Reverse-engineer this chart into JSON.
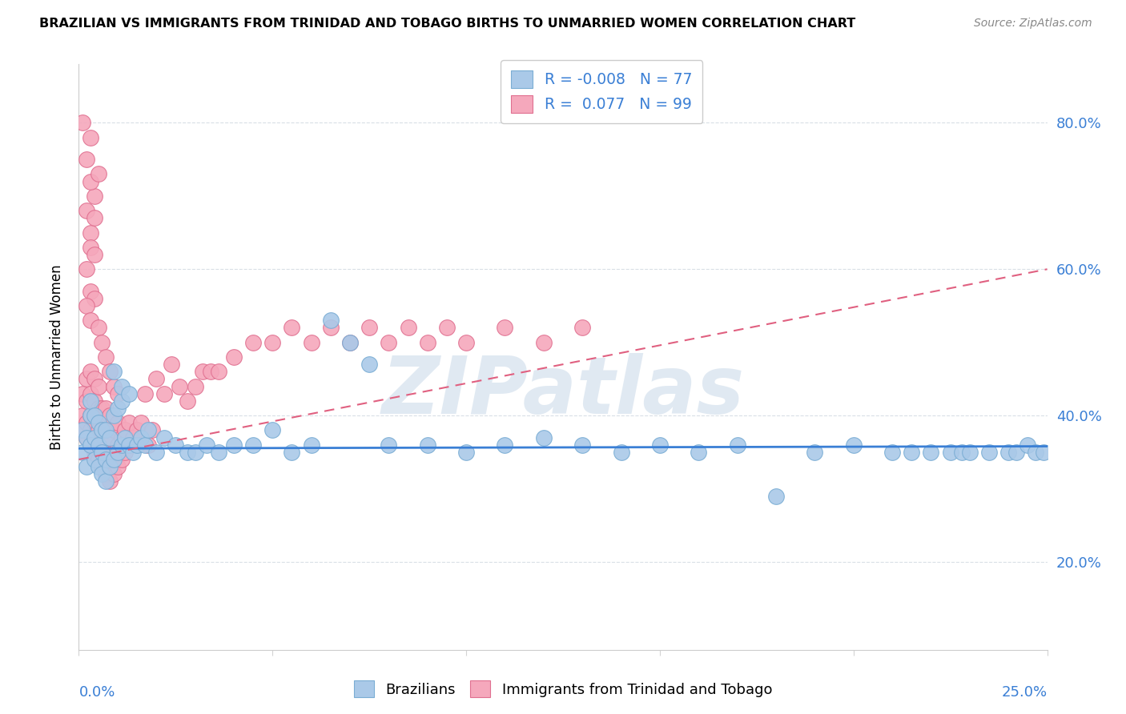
{
  "title": "BRAZILIAN VS IMMIGRANTS FROM TRINIDAD AND TOBAGO BIRTHS TO UNMARRIED WOMEN CORRELATION CHART",
  "source": "Source: ZipAtlas.com",
  "ylabel": "Births to Unmarried Women",
  "yticks": [
    0.2,
    0.4,
    0.6,
    0.8
  ],
  "ytick_labels": [
    "20.0%",
    "40.0%",
    "60.0%",
    "80.0%"
  ],
  "xlim": [
    0.0,
    0.25
  ],
  "ylim": [
    0.08,
    0.88
  ],
  "blue_R": "-0.008",
  "blue_N": "77",
  "pink_R": "0.077",
  "pink_N": "99",
  "blue_color": "#aac9e8",
  "pink_color": "#f5a8bc",
  "blue_edge_color": "#7aadd4",
  "pink_edge_color": "#e07090",
  "blue_line_color": "#3a7fd5",
  "pink_line_color": "#e06080",
  "watermark": "ZIPatlas",
  "blue_line_y0": 0.355,
  "blue_line_y1": 0.358,
  "pink_line_y0": 0.34,
  "pink_line_y1": 0.6,
  "blue_scatter_x": [
    0.001,
    0.001,
    0.002,
    0.002,
    0.003,
    0.003,
    0.003,
    0.004,
    0.004,
    0.004,
    0.005,
    0.005,
    0.005,
    0.006,
    0.006,
    0.006,
    0.007,
    0.007,
    0.007,
    0.008,
    0.008,
    0.009,
    0.009,
    0.01,
    0.01,
    0.011,
    0.011,
    0.012,
    0.013,
    0.014,
    0.015,
    0.016,
    0.017,
    0.018,
    0.02,
    0.022,
    0.025,
    0.028,
    0.03,
    0.033,
    0.036,
    0.04,
    0.045,
    0.05,
    0.055,
    0.06,
    0.065,
    0.07,
    0.08,
    0.09,
    0.1,
    0.11,
    0.12,
    0.13,
    0.14,
    0.15,
    0.16,
    0.17,
    0.18,
    0.19,
    0.2,
    0.21,
    0.215,
    0.22,
    0.225,
    0.228,
    0.23,
    0.235,
    0.24,
    0.242,
    0.245,
    0.247,
    0.249,
    0.009,
    0.011,
    0.013,
    0.075
  ],
  "blue_scatter_y": [
    0.35,
    0.38,
    0.33,
    0.37,
    0.36,
    0.4,
    0.42,
    0.34,
    0.37,
    0.4,
    0.33,
    0.36,
    0.39,
    0.32,
    0.35,
    0.38,
    0.31,
    0.34,
    0.38,
    0.33,
    0.37,
    0.34,
    0.4,
    0.35,
    0.41,
    0.36,
    0.42,
    0.37,
    0.36,
    0.35,
    0.36,
    0.37,
    0.36,
    0.38,
    0.35,
    0.37,
    0.36,
    0.35,
    0.35,
    0.36,
    0.35,
    0.36,
    0.36,
    0.38,
    0.35,
    0.36,
    0.53,
    0.5,
    0.36,
    0.36,
    0.35,
    0.36,
    0.37,
    0.36,
    0.35,
    0.36,
    0.35,
    0.36,
    0.29,
    0.35,
    0.36,
    0.35,
    0.35,
    0.35,
    0.35,
    0.35,
    0.35,
    0.35,
    0.35,
    0.35,
    0.36,
    0.35,
    0.35,
    0.46,
    0.44,
    0.43,
    0.47
  ],
  "pink_scatter_x": [
    0.001,
    0.001,
    0.001,
    0.002,
    0.002,
    0.002,
    0.002,
    0.003,
    0.003,
    0.003,
    0.003,
    0.003,
    0.004,
    0.004,
    0.004,
    0.004,
    0.004,
    0.005,
    0.005,
    0.005,
    0.005,
    0.005,
    0.006,
    0.006,
    0.006,
    0.006,
    0.007,
    0.007,
    0.007,
    0.007,
    0.008,
    0.008,
    0.008,
    0.008,
    0.009,
    0.009,
    0.009,
    0.01,
    0.01,
    0.01,
    0.011,
    0.011,
    0.012,
    0.012,
    0.013,
    0.013,
    0.014,
    0.015,
    0.016,
    0.017,
    0.018,
    0.019,
    0.02,
    0.022,
    0.024,
    0.026,
    0.028,
    0.03,
    0.032,
    0.034,
    0.036,
    0.04,
    0.045,
    0.05,
    0.055,
    0.06,
    0.065,
    0.07,
    0.075,
    0.08,
    0.085,
    0.09,
    0.095,
    0.1,
    0.11,
    0.12,
    0.13,
    0.002,
    0.003,
    0.003,
    0.004,
    0.002,
    0.003,
    0.004,
    0.005,
    0.002,
    0.003,
    0.004,
    0.003,
    0.004,
    0.001,
    0.002,
    0.003,
    0.005,
    0.006,
    0.007,
    0.008,
    0.009,
    0.01
  ],
  "pink_scatter_y": [
    0.4,
    0.43,
    0.38,
    0.37,
    0.39,
    0.42,
    0.45,
    0.36,
    0.38,
    0.4,
    0.43,
    0.46,
    0.35,
    0.37,
    0.39,
    0.42,
    0.45,
    0.34,
    0.36,
    0.38,
    0.41,
    0.44,
    0.33,
    0.35,
    0.38,
    0.41,
    0.32,
    0.35,
    0.38,
    0.41,
    0.31,
    0.34,
    0.37,
    0.4,
    0.32,
    0.35,
    0.38,
    0.33,
    0.36,
    0.39,
    0.34,
    0.37,
    0.35,
    0.38,
    0.36,
    0.39,
    0.37,
    0.38,
    0.39,
    0.43,
    0.36,
    0.38,
    0.45,
    0.43,
    0.47,
    0.44,
    0.42,
    0.44,
    0.46,
    0.46,
    0.46,
    0.48,
    0.5,
    0.5,
    0.52,
    0.5,
    0.52,
    0.5,
    0.52,
    0.5,
    0.52,
    0.5,
    0.52,
    0.5,
    0.52,
    0.5,
    0.52,
    0.75,
    0.78,
    0.65,
    0.7,
    0.68,
    0.72,
    0.67,
    0.73,
    0.6,
    0.63,
    0.62,
    0.57,
    0.56,
    0.8,
    0.55,
    0.53,
    0.52,
    0.5,
    0.48,
    0.46,
    0.44,
    0.43
  ]
}
